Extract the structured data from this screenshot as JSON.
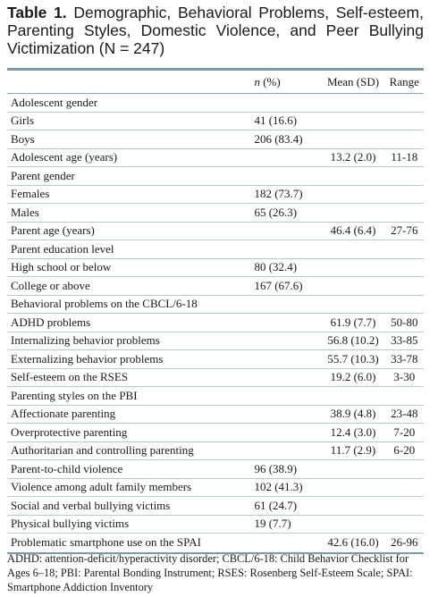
{
  "caption": {
    "label": "Table 1.",
    "text": "Demographic, Behavioral Problems, Self-esteem, Parenting Styles, Domestic Violence, and Peer Bullying Victimization (N = 247)"
  },
  "table": {
    "headers": {
      "label": "",
      "n_italic": "n",
      "n_rest": " (%)",
      "mean": "Mean (SD)",
      "range": "Range"
    },
    "rows": [
      {
        "label": "Adolescent gender",
        "n": "",
        "mean": "",
        "range": ""
      },
      {
        "label": "Girls",
        "n": "41 (16.6)",
        "mean": "",
        "range": ""
      },
      {
        "label": "Boys",
        "n": "206 (83.4)",
        "mean": "",
        "range": ""
      },
      {
        "label": "Adolescent age (years)",
        "n": "",
        "mean": "13.2 (2.0)",
        "range": "11-18"
      },
      {
        "label": "Parent gender",
        "n": "",
        "mean": "",
        "range": ""
      },
      {
        "label": "Females",
        "n": "182 (73.7)",
        "mean": "",
        "range": ""
      },
      {
        "label": "Males",
        "n": "65 (26.3)",
        "mean": "",
        "range": ""
      },
      {
        "label": "Parent age (years)",
        "n": "",
        "mean": "46.4 (6.4)",
        "range": "27-76"
      },
      {
        "label": "Parent education level",
        "n": "",
        "mean": "",
        "range": ""
      },
      {
        "label": "High school or below",
        "n": "80 (32.4)",
        "mean": "",
        "range": ""
      },
      {
        "label": "College or above",
        "n": "167 (67.6)",
        "mean": "",
        "range": ""
      },
      {
        "label": "Behavioral problems on the CBCL/6-18",
        "n": "",
        "mean": "",
        "range": ""
      },
      {
        "label": "ADHD problems",
        "n": "",
        "mean": "61.9 (7.7)",
        "range": "50-80"
      },
      {
        "label": "Internalizing behavior problems",
        "n": "",
        "mean": "56.8 (10.2)",
        "range": "33-85"
      },
      {
        "label": "Externalizing behavior problems",
        "n": "",
        "mean": "55.7 (10.3)",
        "range": "33-78"
      },
      {
        "label": "Self-esteem on the RSES",
        "n": "",
        "mean": "19.2 (6.0)",
        "range": "3-30"
      },
      {
        "label": "Parenting styles on the PBI",
        "n": "",
        "mean": "",
        "range": ""
      },
      {
        "label": "Affectionate parenting",
        "n": "",
        "mean": "38.9 (4.8)",
        "range": "23-48"
      },
      {
        "label": "Overprotective parenting",
        "n": "",
        "mean": "12.4 (3.0)",
        "range": "7-20"
      },
      {
        "label": "Authoritarian and controlling parenting",
        "n": "",
        "mean": "11.7 (2.9)",
        "range": "6-20"
      },
      {
        "label": "Parent-to-child violence",
        "n": "96 (38.9)",
        "mean": "",
        "range": ""
      },
      {
        "label": "Violence among adult family members",
        "n": "102 (41.3)",
        "mean": "",
        "range": ""
      },
      {
        "label": "Social and verbal bullying victims",
        "n": "61 (24.7)",
        "mean": "",
        "range": ""
      },
      {
        "label": "Physical bullying victims",
        "n": "19 (7.7)",
        "mean": "",
        "range": ""
      },
      {
        "label": "Problematic smartphone use on the SPAI",
        "n": "",
        "mean": "42.6 (16.0)",
        "range": "26-96"
      }
    ]
  },
  "footnote": "ADHD: attention-deficit/hyperactivity disorder; CBCL/6-18: Child Behavior Checklist for Ages 6–18; PBI: Parental Bonding Instrument; RSES: Rosenberg Self-Esteem Scale; SPAI: Smartphone Addiction Inventory",
  "colors": {
    "rule": "#7a9aa8",
    "row_line": "#b8c9d0",
    "text": "#1a1a1a"
  }
}
